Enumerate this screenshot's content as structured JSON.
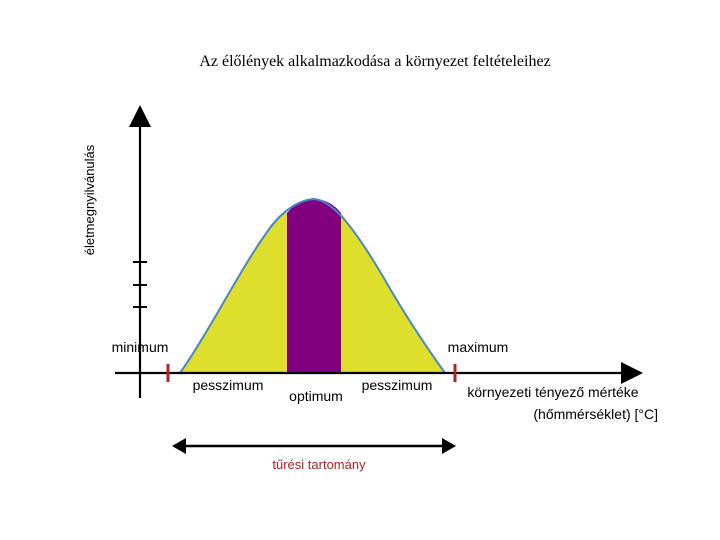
{
  "title": "Az élőlények alkalmazkodása a környezet feltételeihez",
  "y_axis_label": "életmegnyilvánulás",
  "labels": {
    "minimum": "minimum",
    "maximum": "maximum",
    "pessimum_left": "pesszimum",
    "optimum": "optimum",
    "pessimum_right": "pesszimum",
    "x_axis_line1": "környezeti tényező mértéke",
    "x_axis_line2": "(hőmmérséklet) [°C]",
    "tolerance_range": "tűrési tartomány"
  },
  "colors": {
    "pessimum_zone": "#dede2c",
    "optimum_zone": "#800080",
    "curve_outline": "#4a86c8",
    "axis": "#000000",
    "limit_marks": "#b22222",
    "tolerance_text": "#b22222"
  }
}
